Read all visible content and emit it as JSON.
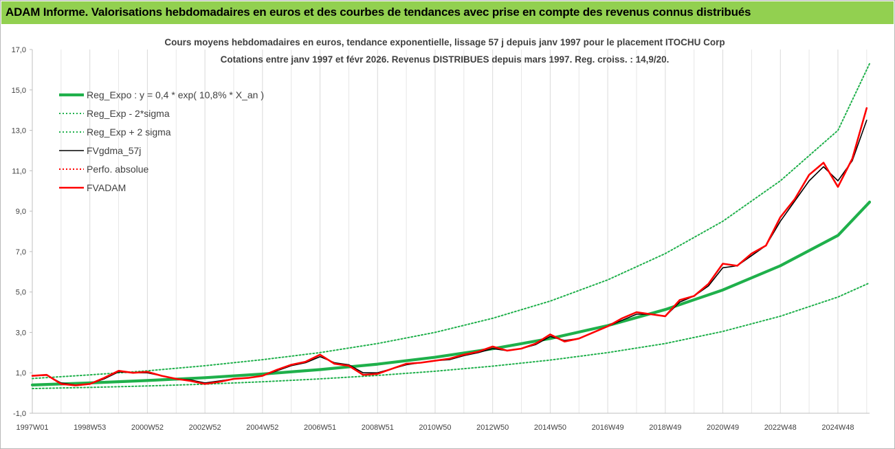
{
  "header": {
    "title": "ADAM Informe. Valorisations hebdomadaires en euros et des courbes de tendances avec prise en compte des revenus connus distribués"
  },
  "chart_data": {
    "type": "line",
    "title_lines": [
      "Cours moyens hebdomadaires en euros, tendance exponentielle, lissage 57 j depuis janv 1997 pour le placement ITOCHU Corp",
      "Cotations entre janv 1997 et févr 2026. Revenus DISTRIBUES depuis mars 1997. Reg. croiss. : 14,9/20."
    ],
    "xlabel": "",
    "ylabel": "",
    "x_range": [
      1997.0,
      2026.1
    ],
    "ylim": [
      -1,
      17
    ],
    "y_ticks": [
      -1,
      1,
      3,
      5,
      7,
      9,
      11,
      13,
      15,
      17
    ],
    "y_tick_labels": [
      "-1,0",
      "1,0",
      "3,0",
      "5,0",
      "7,0",
      "9,0",
      "11,0",
      "13,0",
      "15,0",
      "17,0"
    ],
    "x_ticks": [
      {
        "label": "1997W01",
        "x": 1997.0
      },
      {
        "label": "1998W53",
        "x": 1999.0
      },
      {
        "label": "2000W52",
        "x": 2001.0
      },
      {
        "label": "2002W52",
        "x": 2003.0
      },
      {
        "label": "2004W52",
        "x": 2005.0
      },
      {
        "label": "2006W51",
        "x": 2007.0
      },
      {
        "label": "2008W51",
        "x": 2009.0
      },
      {
        "label": "2010W50",
        "x": 2011.0
      },
      {
        "label": "2012W50",
        "x": 2013.0
      },
      {
        "label": "2014W50",
        "x": 2015.0
      },
      {
        "label": "2016W49",
        "x": 2017.0
      },
      {
        "label": "2018W49",
        "x": 2019.0
      },
      {
        "label": "2020W49",
        "x": 2021.0
      },
      {
        "label": "2022W48",
        "x": 2023.0
      },
      {
        "label": "2024W48",
        "x": 2025.0
      }
    ],
    "grid": "vertical",
    "legend_position": "top-left",
    "colors": {
      "green": "#1fb04b",
      "red": "#ff0000",
      "black": "#000000",
      "axis_text": "#404040",
      "banner": "#92d050"
    },
    "series": [
      {
        "name": "Reg_Expo : y = 0,4 * exp( 10,8% *  X_an )",
        "style": "solid-thick",
        "color": "#1fb04b",
        "x": [
          1997.0,
          1999.0,
          2001.0,
          2003.0,
          2005.0,
          2007.0,
          2009.0,
          2011.0,
          2013.0,
          2015.0,
          2017.0,
          2019.0,
          2021.0,
          2023.0,
          2025.0,
          2026.1
        ],
        "y": [
          0.4,
          0.5,
          0.62,
          0.76,
          0.94,
          1.16,
          1.43,
          1.77,
          2.19,
          2.7,
          3.34,
          4.13,
          5.1,
          6.3,
          7.8,
          9.45
        ]
      },
      {
        "name": "Reg_Exp - 2*sigma",
        "style": "dotted",
        "color": "#1fb04b",
        "x": [
          1997.0,
          1999.0,
          2001.0,
          2003.0,
          2005.0,
          2007.0,
          2009.0,
          2011.0,
          2013.0,
          2015.0,
          2017.0,
          2019.0,
          2021.0,
          2023.0,
          2025.0,
          2026.1
        ],
        "y": [
          0.22,
          0.28,
          0.35,
          0.44,
          0.56,
          0.7,
          0.87,
          1.08,
          1.33,
          1.63,
          2.0,
          2.45,
          3.05,
          3.8,
          4.75,
          5.45
        ]
      },
      {
        "name": "Reg_Exp + 2 sigma",
        "style": "dotted",
        "color": "#1fb04b",
        "x": [
          1997.0,
          1999.0,
          2001.0,
          2003.0,
          2005.0,
          2007.0,
          2009.0,
          2011.0,
          2013.0,
          2015.0,
          2017.0,
          2019.0,
          2021.0,
          2023.0,
          2025.0,
          2026.1
        ],
        "y": [
          0.72,
          0.9,
          1.1,
          1.35,
          1.65,
          2.0,
          2.45,
          3.0,
          3.7,
          4.55,
          5.6,
          6.9,
          8.5,
          10.5,
          13.0,
          16.3
        ]
      },
      {
        "name": "FVgdma_57j",
        "style": "solid",
        "color": "#000000",
        "x": [
          1997.0,
          1997.5,
          1998.0,
          1998.5,
          1999.0,
          1999.5,
          2000.0,
          2000.5,
          2001.0,
          2001.5,
          2002.0,
          2002.5,
          2003.0,
          2003.5,
          2004.0,
          2004.5,
          2005.0,
          2005.5,
          2006.0,
          2006.5,
          2007.0,
          2007.5,
          2008.0,
          2008.5,
          2009.0,
          2009.5,
          2010.0,
          2010.5,
          2011.0,
          2011.5,
          2012.0,
          2012.5,
          2013.0,
          2013.5,
          2014.0,
          2014.5,
          2015.0,
          2015.5,
          2016.0,
          2016.5,
          2017.0,
          2017.5,
          2018.0,
          2018.5,
          2019.0,
          2019.5,
          2020.0,
          2020.5,
          2021.0,
          2021.5,
          2022.0,
          2022.5,
          2023.0,
          2023.5,
          2024.0,
          2024.5,
          2025.0,
          2025.5,
          2026.0
        ],
        "y": [
          0.85,
          0.88,
          0.5,
          0.4,
          0.45,
          0.7,
          1.05,
          1.0,
          1.0,
          0.85,
          0.7,
          0.65,
          0.5,
          0.6,
          0.7,
          0.75,
          0.85,
          1.1,
          1.35,
          1.5,
          1.8,
          1.5,
          1.4,
          1.0,
          1.0,
          1.2,
          1.4,
          1.5,
          1.6,
          1.65,
          1.85,
          2.0,
          2.2,
          2.1,
          2.2,
          2.4,
          2.8,
          2.6,
          2.7,
          3.0,
          3.3,
          3.6,
          3.9,
          3.9,
          3.8,
          4.5,
          4.8,
          5.3,
          6.2,
          6.3,
          6.8,
          7.3,
          8.5,
          9.5,
          10.5,
          11.2,
          10.5,
          11.5,
          13.5
        ]
      },
      {
        "name": "Perfo. absolue",
        "style": "dotted",
        "color": "#ff0000",
        "x": [
          1997.0,
          1997.5,
          1998.0,
          1998.5,
          1999.0,
          1999.5,
          2000.0,
          2000.5,
          2001.0,
          2001.5,
          2002.0,
          2002.5,
          2003.0,
          2003.5,
          2004.0,
          2004.5,
          2005.0,
          2005.5,
          2006.0,
          2006.5,
          2007.0,
          2007.5,
          2008.0,
          2008.5,
          2009.0,
          2009.5,
          2010.0,
          2010.5,
          2011.0,
          2011.5,
          2012.0,
          2012.5,
          2013.0,
          2013.5,
          2014.0,
          2014.5,
          2015.0,
          2015.5,
          2016.0,
          2016.5,
          2017.0,
          2017.5,
          2018.0,
          2018.5,
          2019.0,
          2019.5,
          2020.0,
          2020.5,
          2021.0,
          2021.5,
          2022.0,
          2022.5,
          2023.0,
          2023.5,
          2024.0,
          2024.5,
          2025.0,
          2025.5,
          2026.0
        ],
        "y": [
          0.85,
          0.9,
          0.45,
          0.38,
          0.45,
          0.75,
          1.1,
          1.0,
          1.05,
          0.85,
          0.7,
          0.6,
          0.45,
          0.55,
          0.7,
          0.75,
          0.85,
          1.15,
          1.4,
          1.55,
          1.9,
          1.45,
          1.35,
          0.9,
          0.95,
          1.2,
          1.45,
          1.5,
          1.6,
          1.7,
          1.9,
          2.05,
          2.3,
          2.1,
          2.2,
          2.45,
          2.9,
          2.55,
          2.7,
          3.0,
          3.3,
          3.7,
          4.0,
          3.9,
          3.8,
          4.6,
          4.8,
          5.4,
          6.4,
          6.3,
          6.9,
          7.3,
          8.7,
          9.6,
          10.8,
          11.4,
          10.2,
          11.6,
          14.1
        ]
      },
      {
        "name": "FVADAM",
        "style": "solid-thick",
        "color": "#ff0000",
        "x": [
          1997.0,
          1997.5,
          1998.0,
          1998.5,
          1999.0,
          1999.5,
          2000.0,
          2000.5,
          2001.0,
          2001.5,
          2002.0,
          2002.5,
          2003.0,
          2003.5,
          2004.0,
          2004.5,
          2005.0,
          2005.5,
          2006.0,
          2006.5,
          2007.0,
          2007.5,
          2008.0,
          2008.5,
          2009.0,
          2009.5,
          2010.0,
          2010.5,
          2011.0,
          2011.5,
          2012.0,
          2012.5,
          2013.0,
          2013.5,
          2014.0,
          2014.5,
          2015.0,
          2015.5,
          2016.0,
          2016.5,
          2017.0,
          2017.5,
          2018.0,
          2018.5,
          2019.0,
          2019.5,
          2020.0,
          2020.5,
          2021.0,
          2021.5,
          2022.0,
          2022.5,
          2023.0,
          2023.5,
          2024.0,
          2024.5,
          2025.0,
          2025.5,
          2026.0
        ],
        "y": [
          0.85,
          0.9,
          0.45,
          0.38,
          0.45,
          0.75,
          1.1,
          1.0,
          1.05,
          0.85,
          0.7,
          0.6,
          0.45,
          0.55,
          0.7,
          0.75,
          0.85,
          1.15,
          1.4,
          1.55,
          1.9,
          1.45,
          1.35,
          0.9,
          0.95,
          1.2,
          1.45,
          1.5,
          1.6,
          1.7,
          1.9,
          2.05,
          2.3,
          2.1,
          2.2,
          2.45,
          2.9,
          2.55,
          2.7,
          3.0,
          3.3,
          3.7,
          4.0,
          3.9,
          3.8,
          4.6,
          4.8,
          5.4,
          6.4,
          6.3,
          6.9,
          7.3,
          8.7,
          9.6,
          10.8,
          11.4,
          10.2,
          11.6,
          14.1
        ]
      }
    ]
  }
}
